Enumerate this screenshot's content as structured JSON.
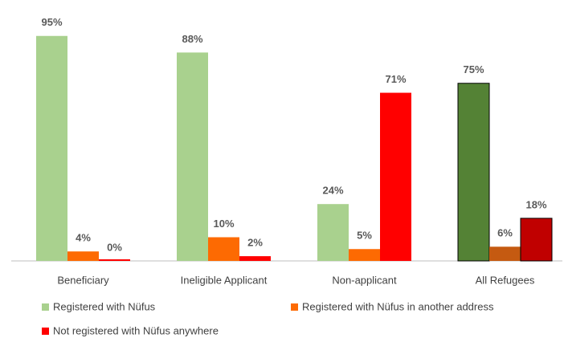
{
  "chart_data": {
    "type": "bar",
    "categories": [
      "Beneficiary",
      "Ineligible Applicant",
      "Non-applicant",
      "All Refugees"
    ],
    "series": [
      {
        "name": "Registered with Nüfus",
        "color": "#a9d18e",
        "point_colors": [
          "#a9d18e",
          "#a9d18e",
          "#a9d18e",
          "#548235"
        ],
        "point_strokes": [
          null,
          null,
          null,
          "#000000"
        ],
        "values": [
          95,
          88,
          24,
          75
        ],
        "value_labels": [
          "95%",
          "88%",
          "24%",
          "75%"
        ]
      },
      {
        "name": "Registered with Nüfus in another address",
        "color": "#fd6a02",
        "point_colors": [
          "#fd6a02",
          "#fd6a02",
          "#fd6a02",
          "#c55a11"
        ],
        "point_strokes": [
          null,
          null,
          null,
          null
        ],
        "values": [
          4,
          10,
          5,
          6
        ],
        "value_labels": [
          "4%",
          "10%",
          "5%",
          "6%"
        ]
      },
      {
        "name": "Not registered with Nüfus anywhere",
        "color": "#ff0000",
        "point_colors": [
          "#ff0000",
          "#ff0000",
          "#ff0000",
          "#c00000"
        ],
        "point_strokes": [
          null,
          null,
          null,
          "#000000"
        ],
        "values": [
          0,
          2,
          71,
          18
        ],
        "value_labels": [
          "0%",
          "2%",
          "71%",
          "18%"
        ]
      }
    ],
    "ylim": [
      0,
      100
    ]
  }
}
